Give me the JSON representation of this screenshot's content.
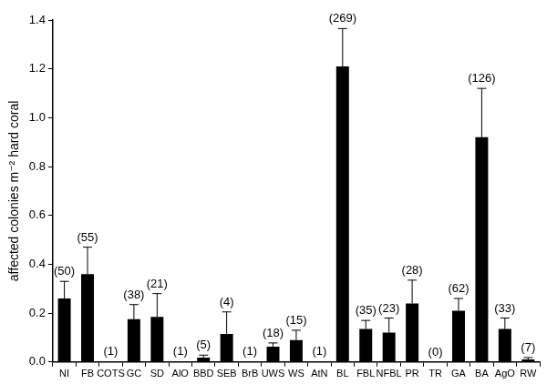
{
  "chart_data": {
    "type": "bar",
    "ylabel": "affected colonies m⁻² hard coral",
    "categories": [
      "NI",
      "FB",
      "COTS",
      "GC",
      "SD",
      "AlO",
      "BBD",
      "SEB",
      "BrB",
      "UWS",
      "WS",
      "AtN",
      "BL",
      "FBL",
      "NFBL",
      "PR",
      "TR",
      "GA",
      "BA",
      "AgO",
      "RW"
    ],
    "values": [
      0.26,
      0.36,
      0.002,
      0.175,
      0.185,
      0.002,
      0.018,
      0.115,
      0.002,
      0.063,
      0.09,
      0.002,
      1.21,
      0.135,
      0.12,
      0.24,
      0,
      0.21,
      0.92,
      0.135,
      0.01
    ],
    "errors": [
      0.07,
      0.11,
      0,
      0.06,
      0.095,
      0,
      0.01,
      0.09,
      0,
      0.015,
      0.04,
      0,
      0.155,
      0.035,
      0.06,
      0.095,
      0,
      0.05,
      0.2,
      0.045,
      0.008
    ],
    "bar_labels": [
      "(50)",
      "(55)",
      "(1)",
      "(38)",
      "(21)",
      "(1)",
      "(5)",
      "(4)",
      "(1)",
      "(18)",
      "(15)",
      "(1)",
      "(269)",
      "(35)",
      "(23)",
      "(28)",
      "(0)",
      "(62)",
      "(126)",
      "(33)",
      "(7)"
    ],
    "color": "#000000",
    "ylim": [
      0,
      1.4
    ],
    "yticks": [
      {
        "value": 0,
        "label": "0.0"
      },
      0.2,
      0.4,
      0.6,
      0.8,
      {
        "value": 1,
        "label": "1.0"
      },
      1.2,
      1.4
    ],
    "grid": false
  }
}
